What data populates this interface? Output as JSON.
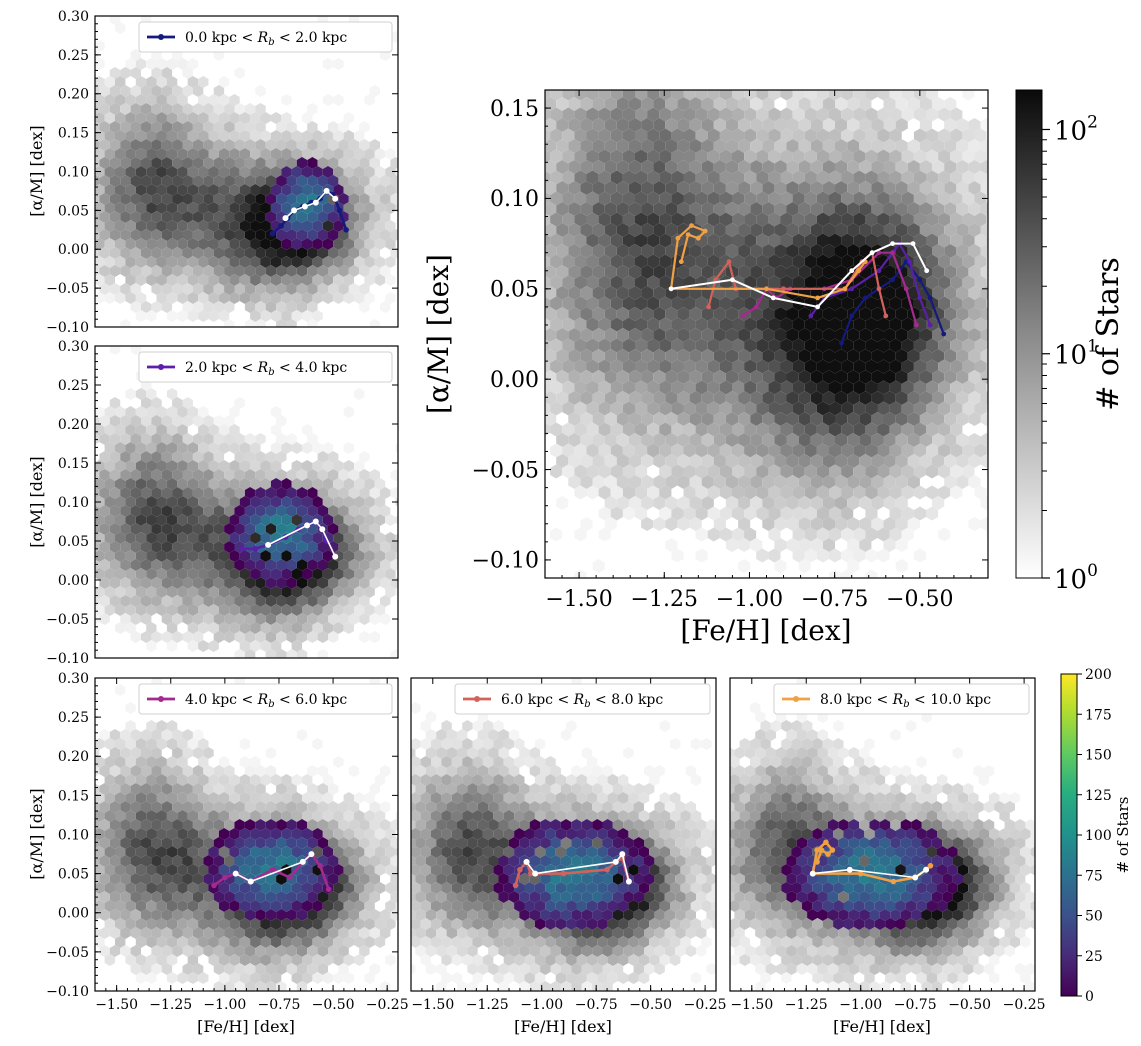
{
  "chart_data": [
    {
      "id": "p0",
      "type": "hexbin",
      "xlim": [
        -1.6,
        -0.2
      ],
      "ylim": [
        -0.1,
        0.3
      ],
      "xticks": [],
      "yticks": [
        -0.1,
        -0.05,
        0.0,
        0.05,
        0.1,
        0.15,
        0.2,
        0.25,
        0.3
      ],
      "xlabel": "",
      "ylabel": "[α/M] [dex]",
      "legend": {
        "label": "0.0 kpc < R_b < 2.0 kpc",
        "color": "#151a7e",
        "placement": "top-right"
      },
      "overlay_center": [
        -0.62,
        0.055
      ],
      "overlay_spread": [
        0.13,
        0.04
      ],
      "track": [
        [
          -0.78,
          0.02
        ],
        [
          -0.74,
          0.03
        ],
        [
          -0.71,
          0.04
        ],
        [
          -0.68,
          0.05
        ],
        [
          -0.64,
          0.055
        ],
        [
          -0.6,
          0.06
        ],
        [
          -0.56,
          0.065
        ],
        [
          -0.53,
          0.075
        ],
        [
          -0.5,
          0.07
        ],
        [
          -0.47,
          0.05
        ],
        [
          -0.44,
          0.025
        ]
      ],
      "white_track": [
        [
          -0.72,
          0.04
        ],
        [
          -0.68,
          0.05
        ],
        [
          -0.63,
          0.055
        ],
        [
          -0.58,
          0.06
        ],
        [
          -0.53,
          0.075
        ],
        [
          -0.49,
          0.065
        ]
      ]
    },
    {
      "id": "p1",
      "type": "hexbin",
      "xlim": [
        -1.6,
        -0.2
      ],
      "ylim": [
        -0.1,
        0.3
      ],
      "xticks": [],
      "yticks": [
        -0.1,
        -0.05,
        0.0,
        0.05,
        0.1,
        0.15,
        0.2,
        0.25,
        0.3
      ],
      "xlabel": "",
      "ylabel": "[α/M] [dex]",
      "legend": {
        "label": "2.0 kpc < R_b < 4.0 kpc",
        "color": "#5b1fa8",
        "placement": "top-right"
      },
      "overlay_center": [
        -0.74,
        0.06
      ],
      "overlay_spread": [
        0.18,
        0.045
      ],
      "track": [
        [
          -0.92,
          0.04
        ],
        [
          -0.86,
          0.04
        ],
        [
          -0.8,
          0.045
        ],
        [
          -0.72,
          0.055
        ],
        [
          -0.66,
          0.065
        ],
        [
          -0.62,
          0.07
        ],
        [
          -0.58,
          0.075
        ],
        [
          -0.55,
          0.065
        ],
        [
          -0.53,
          0.05
        ]
      ],
      "white_track": [
        [
          -0.8,
          0.045
        ],
        [
          -0.62,
          0.07
        ],
        [
          -0.58,
          0.075
        ],
        [
          -0.55,
          0.065
        ],
        [
          -0.49,
          0.03
        ]
      ]
    },
    {
      "id": "p2",
      "type": "hexbin",
      "xlim": [
        -1.6,
        -0.2
      ],
      "ylim": [
        -0.1,
        0.3
      ],
      "xticks": [
        -1.5,
        -1.25,
        -1.0,
        -0.75,
        -0.5,
        -0.25
      ],
      "yticks": [
        -0.1,
        -0.05,
        0.0,
        0.05,
        0.1,
        0.15,
        0.2,
        0.25,
        0.3
      ],
      "xlabel": "[Fe/H] [dex]",
      "ylabel": "[α/M] [dex]",
      "legend": {
        "label": "4.0 kpc < R_b < 6.0 kpc",
        "color": "#a42a8f",
        "placement": "top-right"
      },
      "overlay_center": [
        -0.78,
        0.055
      ],
      "overlay_spread": [
        0.22,
        0.045
      ],
      "track": [
        [
          -1.05,
          0.035
        ],
        [
          -1.0,
          0.045
        ],
        [
          -0.95,
          0.05
        ],
        [
          -0.88,
          0.04
        ],
        [
          -0.78,
          0.055
        ],
        [
          -0.7,
          0.045
        ],
        [
          -0.64,
          0.065
        ],
        [
          -0.6,
          0.075
        ],
        [
          -0.56,
          0.06
        ],
        [
          -0.52,
          0.03
        ]
      ],
      "white_track": [
        [
          -0.95,
          0.05
        ],
        [
          -0.88,
          0.04
        ],
        [
          -0.64,
          0.065
        ],
        [
          -0.6,
          0.075
        ]
      ]
    },
    {
      "id": "p3",
      "type": "hexbin",
      "xlim": [
        -1.6,
        -0.2
      ],
      "ylim": [
        -0.1,
        0.3
      ],
      "xticks": [
        -1.5,
        -1.25,
        -1.0,
        -0.75,
        -0.5,
        -0.25
      ],
      "yticks": [],
      "xlabel": "[Fe/H] [dex]",
      "ylabel": "",
      "legend": {
        "label": "6.0 kpc < R_b < 8.0 kpc",
        "color": "#d2635c",
        "placement": "top-right"
      },
      "overlay_center": [
        -0.85,
        0.05
      ],
      "overlay_spread": [
        0.25,
        0.05
      ],
      "track": [
        [
          -1.12,
          0.035
        ],
        [
          -1.1,
          0.055
        ],
        [
          -1.07,
          0.065
        ],
        [
          -1.05,
          0.05
        ],
        [
          -0.9,
          0.05
        ],
        [
          -0.7,
          0.055
        ],
        [
          -0.66,
          0.065
        ],
        [
          -0.63,
          0.07
        ],
        [
          -0.6,
          0.04
        ]
      ],
      "white_track": [
        [
          -1.07,
          0.065
        ],
        [
          -1.03,
          0.05
        ],
        [
          -0.66,
          0.065
        ],
        [
          -0.63,
          0.075
        ],
        [
          -0.6,
          0.04
        ]
      ]
    },
    {
      "id": "p4",
      "type": "hexbin",
      "xlim": [
        -1.6,
        -0.2
      ],
      "ylim": [
        -0.1,
        0.3
      ],
      "xticks": [
        -1.5,
        -1.25,
        -1.0,
        -0.75,
        -0.5,
        -0.25
      ],
      "yticks": [],
      "xlabel": "[Fe/H] [dex]",
      "ylabel": "",
      "legend": {
        "label": "8.0 kpc < R_b < 10.0 kpc",
        "color": "#f0a045",
        "placement": "top-right"
      },
      "overlay_center": [
        -0.95,
        0.05
      ],
      "overlay_spread": [
        0.28,
        0.05
      ],
      "track": [
        [
          -1.2,
          0.065
        ],
        [
          -1.18,
          0.08
        ],
        [
          -1.15,
          0.075
        ],
        [
          -1.13,
          0.08
        ],
        [
          -1.16,
          0.09
        ],
        [
          -1.2,
          0.08
        ],
        [
          -1.22,
          0.05
        ],
        [
          -1.0,
          0.05
        ],
        [
          -0.85,
          0.04
        ],
        [
          -0.75,
          0.045
        ],
        [
          -0.7,
          0.055
        ],
        [
          -0.68,
          0.06
        ]
      ],
      "white_track": [
        [
          -1.22,
          0.05
        ],
        [
          -1.05,
          0.055
        ],
        [
          -0.75,
          0.045
        ],
        [
          -0.7,
          0.055
        ]
      ]
    },
    {
      "id": "big",
      "type": "hexbin",
      "xlim": [
        -1.6,
        -0.3
      ],
      "ylim": [
        -0.11,
        0.16
      ],
      "xticks": [
        -1.5,
        -1.25,
        -1.0,
        -0.75,
        -0.5
      ],
      "yticks": [
        -0.1,
        -0.05,
        0.0,
        0.05,
        0.1,
        0.15
      ],
      "xlabel": "[Fe/H] [dex]",
      "ylabel": "[α/M] [dex]",
      "colorbar": {
        "label": "# of Stars",
        "scale": "log",
        "range": [
          1,
          150
        ],
        "ticks": [
          "10^0",
          "10^1",
          "10^2"
        ]
      },
      "series": [
        {
          "name": "0.0 kpc < R_b < 2.0 kpc",
          "color": "#151a7e",
          "points": [
            [
              -0.73,
              0.02
            ],
            [
              -0.7,
              0.035
            ],
            [
              -0.66,
              0.045
            ],
            [
              -0.62,
              0.05
            ],
            [
              -0.58,
              0.055
            ],
            [
              -0.54,
              0.065
            ],
            [
              -0.5,
              0.055
            ],
            [
              -0.47,
              0.045
            ],
            [
              -0.43,
              0.025
            ]
          ]
        },
        {
          "name": "2.0 kpc < R_b < 4.0 kpc",
          "color": "#5b1fa8",
          "points": [
            [
              -0.82,
              0.035
            ],
            [
              -0.78,
              0.045
            ],
            [
              -0.7,
              0.05
            ],
            [
              -0.62,
              0.06
            ],
            [
              -0.56,
              0.075
            ],
            [
              -0.53,
              0.065
            ],
            [
              -0.5,
              0.045
            ],
            [
              -0.47,
              0.03
            ]
          ]
        },
        {
          "name": "4.0 kpc < R_b < 6.0 kpc",
          "color": "#a42a8f",
          "points": [
            [
              -1.02,
              0.035
            ],
            [
              -0.98,
              0.04
            ],
            [
              -0.95,
              0.05
            ],
            [
              -0.92,
              0.045
            ],
            [
              -0.88,
              0.05
            ],
            [
              -0.78,
              0.05
            ],
            [
              -0.7,
              0.055
            ],
            [
              -0.62,
              0.07
            ],
            [
              -0.58,
              0.07
            ],
            [
              -0.54,
              0.05
            ],
            [
              -0.51,
              0.03
            ]
          ]
        },
        {
          "name": "6.0 kpc < R_b < 8.0 kpc",
          "color": "#d2635c",
          "points": [
            [
              -1.12,
              0.04
            ],
            [
              -1.1,
              0.055
            ],
            [
              -1.06,
              0.065
            ],
            [
              -1.04,
              0.05
            ],
            [
              -0.9,
              0.05
            ],
            [
              -0.72,
              0.05
            ],
            [
              -0.67,
              0.065
            ],
            [
              -0.64,
              0.07
            ],
            [
              -0.62,
              0.05
            ],
            [
              -0.6,
              0.035
            ]
          ]
        },
        {
          "name": "8.0 kpc < R_b < 10.0 kpc",
          "color": "#f0a045",
          "points": [
            [
              -1.2,
              0.065
            ],
            [
              -1.18,
              0.08
            ],
            [
              -1.15,
              0.078
            ],
            [
              -1.13,
              0.082
            ],
            [
              -1.17,
              0.085
            ],
            [
              -1.21,
              0.078
            ],
            [
              -1.23,
              0.05
            ],
            [
              -0.95,
              0.05
            ],
            [
              -0.8,
              0.045
            ],
            [
              -0.72,
              0.05
            ],
            [
              -0.68,
              0.06
            ],
            [
              -0.66,
              0.065
            ]
          ]
        }
      ],
      "white_track": [
        [
          -1.23,
          0.05
        ],
        [
          -1.05,
          0.055
        ],
        [
          -0.93,
          0.045
        ],
        [
          -0.8,
          0.04
        ],
        [
          -0.7,
          0.06
        ],
        [
          -0.64,
          0.07
        ],
        [
          -0.58,
          0.075
        ],
        [
          -0.52,
          0.075
        ],
        [
          -0.48,
          0.06
        ]
      ]
    }
  ],
  "colorbar_viridis": {
    "label": "# of Stars",
    "ticks": [
      "0",
      "25",
      "50",
      "75",
      "100",
      "125",
      "150",
      "175",
      "200"
    ]
  },
  "colorbar_gray": {
    "label": "# of Stars",
    "ticks": [
      "10^0",
      "10^1",
      "10^2"
    ]
  },
  "colors": {
    "gray_dark": "#121212",
    "gray_light": "#f2f2f2"
  }
}
